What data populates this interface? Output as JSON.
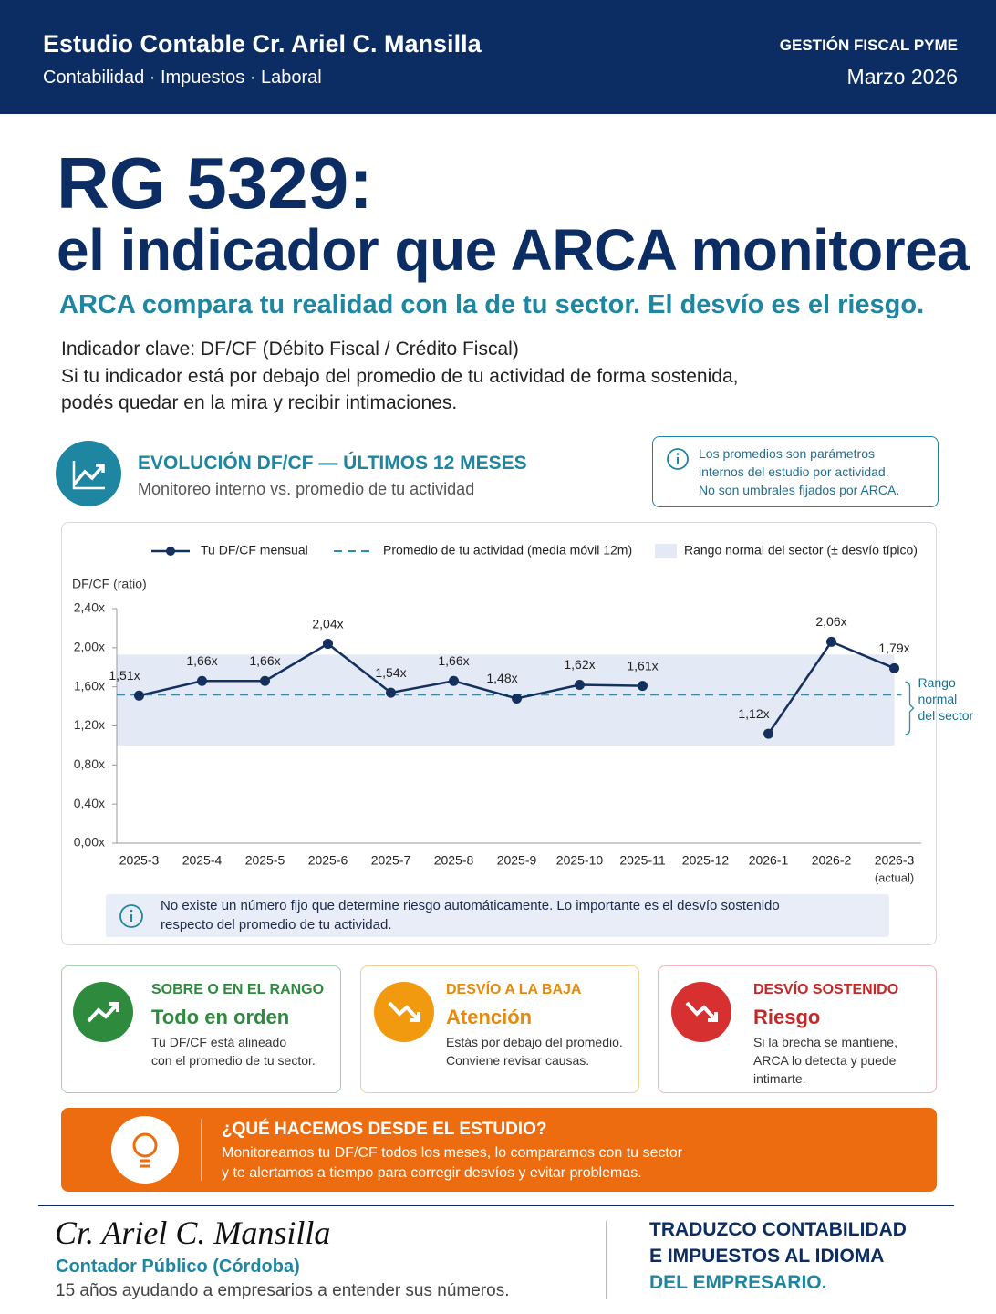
{
  "header": {
    "studio": "Estudio Contable Cr. Ariel C. Mansilla",
    "services": "Contabilidad · Impuestos · Laboral",
    "tag": "GESTIÓN FISCAL PYME",
    "date": "Marzo 2026"
  },
  "hero": {
    "title_1": "RG 5329:",
    "title_2": "el indicador que ARCA monitorea",
    "subtitle": "ARCA compara tu realidad con la de tu sector. El desvío es el riesgo.",
    "body": [
      "Indicador clave: DF/CF (Débito Fiscal / Crédito Fiscal)",
      "Si tu indicador está por debajo del promedio de tu actividad de forma sostenida,",
      "podés quedar en la mira y recibir intimaciones."
    ]
  },
  "section": {
    "title": "EVOLUCIÓN DF/CF — ÚLTIMOS 12 MESES",
    "subtitle": "Monitoreo interno vs. promedio de tu actividad",
    "note": [
      "Los promedios son parámetros",
      "internos del estudio por actividad.",
      "No son umbrales fijados por ARCA."
    ]
  },
  "chart_data": {
    "type": "line",
    "y_label": "DF/CF (ratio)",
    "categories": [
      "2025-3",
      "2025-4",
      "2025-5",
      "2025-6",
      "2025-7",
      "2025-8",
      "2025-9",
      "2025-10",
      "2025-11",
      "2025-12",
      "2026-1",
      "2026-2",
      "2026-3"
    ],
    "x_annotation": "(actual)",
    "series": [
      {
        "name": "Tu DF/CF mensual",
        "color": "#14305e",
        "values": [
          1.51,
          1.66,
          1.66,
          2.04,
          1.54,
          1.66,
          1.48,
          1.62,
          1.61,
          null,
          1.12,
          2.06,
          1.79
        ],
        "value_labels": [
          "1,51x",
          "1,66x",
          "1,66x",
          "2,04x",
          "1,54x",
          "1,66x",
          "1,48x",
          "1,62x",
          "1,61x",
          null,
          "1,12x",
          "2,06x",
          "1,79x"
        ]
      }
    ],
    "average": {
      "name": "Promedio de tu actividad (media móvil 12m)",
      "color": "#2a8fa8",
      "value": 1.52
    },
    "band": {
      "name": "Rango normal del sector (± desvío típico)",
      "color": "#e3e9f5",
      "low": 1.0,
      "high": 1.93,
      "label": [
        "Rango",
        "normal",
        "del sector"
      ]
    },
    "ylim": [
      0,
      2.4
    ],
    "yticks": [
      {
        "value": 0,
        "label": "0,00x"
      },
      {
        "value": 0.4,
        "label": "0,40x"
      },
      {
        "value": 0.8,
        "label": "0,80x"
      },
      {
        "value": 1.2,
        "label": "1,20x"
      },
      {
        "value": 1.6,
        "label": "1,60x"
      },
      {
        "value": 2.0,
        "label": "2,00x"
      },
      {
        "value": 2.4,
        "label": "2,40x"
      }
    ],
    "footnote": [
      "No existe un número fijo que determine riesgo automáticamente. Lo importante es el desvío sostenido",
      "respecto del promedio de tu actividad."
    ]
  },
  "cards": [
    {
      "kicker": "SOBRE O EN EL RANGO",
      "title": "Todo en orden",
      "body": [
        "Tu DF/CF está alineado",
        "con el promedio de tu sector."
      ]
    },
    {
      "kicker": "DESVÍO A LA BAJA",
      "title": "Atención",
      "body": [
        "Estás por debajo del promedio.",
        "Conviene revisar causas."
      ]
    },
    {
      "kicker": "DESVÍO SOSTENIDO",
      "title": "Riesgo",
      "body": [
        "Si la brecha se mantiene,",
        "ARCA lo detecta y puede",
        "intimarte."
      ]
    }
  ],
  "cta": {
    "title": "¿QUÉ HACEMOS DESDE EL ESTUDIO?",
    "body": [
      "Monitoreamos tu DF/CF todos los meses, lo comparamos con tu sector",
      "y te alertamos a tiempo para corregir desvíos y evitar problemas."
    ]
  },
  "footer": {
    "signature": "Cr. Ariel C. Mansilla",
    "role": "Contador Público (Córdoba)",
    "tagline": "15 años ayudando a empresarios a entender sus números.",
    "motto": [
      "TRADUZCO CONTABILIDAD",
      "E IMPUESTOS AL IDIOMA",
      "DEL EMPRESARIO."
    ]
  }
}
